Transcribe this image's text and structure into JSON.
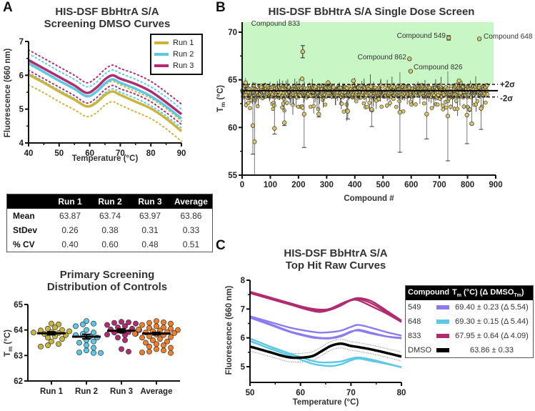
{
  "panel_letters": {
    "a": "A",
    "b": "B",
    "c": "C"
  },
  "chart_data": [
    {
      "id": "A-curves",
      "type": "line",
      "title": "HIS-DSF BbHtrA S/A Screening DMSO Curves",
      "title_lines": [
        "HIS-DSF BbHtrA S/A",
        "Screening DMSO Curves"
      ],
      "xlabel": "Temperature (°C)",
      "ylabel": "Fluorescence (660 nm)",
      "xlim": [
        40,
        90
      ],
      "ylim": [
        4,
        7
      ],
      "xticks": [
        40,
        50,
        60,
        70,
        80,
        90
      ],
      "yticks": [
        4,
        5,
        6,
        7
      ],
      "legend": "top-right",
      "x": [
        40,
        45,
        50,
        55,
        59,
        62,
        65,
        67.5,
        70,
        75,
        80,
        85,
        90
      ],
      "series": [
        {
          "name": "Run 1",
          "color": "#c9b53a",
          "values": [
            6.02,
            5.78,
            5.52,
            5.28,
            5.08,
            5.18,
            5.42,
            5.52,
            5.42,
            5.22,
            5.02,
            4.72,
            4.35
          ],
          "band": 0.3
        },
        {
          "name": "Run 2",
          "color": "#5bc8e6",
          "values": [
            6.36,
            6.1,
            5.84,
            5.6,
            5.38,
            5.5,
            5.76,
            5.88,
            5.78,
            5.6,
            5.38,
            5.08,
            4.72
          ],
          "band": 0.28
        },
        {
          "name": "Run 3",
          "color": "#b02c6e",
          "values": [
            6.45,
            6.2,
            5.95,
            5.7,
            5.48,
            5.62,
            5.88,
            6.0,
            5.9,
            5.74,
            5.52,
            5.2,
            4.85
          ],
          "band": 0.3
        }
      ]
    },
    {
      "id": "A-controls",
      "type": "scatter",
      "title": "Primary Screening Distribution of Controls",
      "title_lines": [
        "Primary Screening",
        "Distribution of Controls"
      ],
      "xlabel": "",
      "ylabel": "Tm (°C)",
      "ylim": [
        62,
        65
      ],
      "yticks": [
        62,
        63,
        64,
        65
      ],
      "categories": [
        "Run 1",
        "Run 2",
        "Run 3",
        "Average"
      ],
      "series": [
        {
          "name": "Run 1",
          "color": "#c9b53a",
          "mean": 63.87,
          "sem": 0.06,
          "values": [
            64.25,
            64.22,
            64.1,
            64.05,
            64.0,
            63.98,
            63.95,
            63.92,
            63.9,
            63.88,
            63.85,
            63.8,
            63.75,
            63.7,
            63.65,
            63.55,
            63.45,
            63.4,
            63.35
          ]
        },
        {
          "name": "Run 2",
          "color": "#5bc8e6",
          "mean": 63.74,
          "sem": 0.09,
          "values": [
            64.35,
            64.25,
            64.22,
            64.15,
            64.0,
            63.9,
            63.85,
            63.8,
            63.75,
            63.7,
            63.6,
            63.55,
            63.5,
            63.4,
            63.3,
            63.2,
            63.12,
            63.1,
            63.1
          ]
        },
        {
          "name": "Run 3",
          "color": "#b02c6e",
          "mean": 63.97,
          "sem": 0.07,
          "values": [
            64.32,
            64.3,
            64.28,
            64.25,
            64.2,
            64.15,
            64.1,
            64.05,
            64.02,
            64.0,
            63.95,
            63.92,
            63.9,
            63.85,
            63.82,
            63.8,
            63.7,
            63.6,
            63.25,
            63.15
          ]
        },
        {
          "name": "Average",
          "color": "#f07f2a",
          "mean": 63.86,
          "sem": 0.05,
          "values": [
            64.35,
            64.3,
            64.28,
            64.25,
            64.2,
            64.15,
            64.1,
            64.08,
            64.05,
            64.02,
            64.0,
            63.98,
            63.95,
            63.92,
            63.9,
            63.88,
            63.85,
            63.82,
            63.8,
            63.75,
            63.72,
            63.7,
            63.65,
            63.6,
            63.55,
            63.5,
            63.45,
            63.4,
            63.35,
            63.3,
            63.25,
            63.2,
            63.15,
            63.12,
            63.1
          ]
        }
      ]
    },
    {
      "id": "B-screen",
      "type": "scatter",
      "title": "HIS-DSF BbHtrA S/A Single Dose Screen",
      "xlabel": "Compound #",
      "ylabel": "Tm (°C)",
      "xlim": [
        0,
        900
      ],
      "ylim": [
        55,
        70
      ],
      "xticks": [
        0,
        100,
        200,
        300,
        400,
        500,
        600,
        700,
        800,
        900
      ],
      "yticks": [
        55,
        60,
        65,
        70
      ],
      "hit_region": {
        "from": 64.52,
        "to": 71,
        "color": "#c8f7c5"
      },
      "mean_line": 63.86,
      "plus_2sigma": 64.52,
      "minus_2sigma": 63.2,
      "plus_2sigma_label": "+2σ",
      "minus_2sigma_label": "-2σ",
      "n_compounds": 872,
      "point_color": "#d8c76a",
      "annotations": [
        {
          "label": "Compound 833",
          "x": 215,
          "y": 67.95,
          "err": 0.64
        },
        {
          "label": "Compound 549",
          "x": 733,
          "y": 69.4,
          "err": 0.23
        },
        {
          "label": "Compound 648",
          "x": 842,
          "y": 69.3,
          "err": 0.15
        },
        {
          "label": "Compound 862",
          "x": 594,
          "y": 67.2,
          "err": 0.1
        },
        {
          "label": "Compound 826",
          "x": 598,
          "y": 65.9,
          "err": 0.2
        }
      ],
      "notable_points": [
        {
          "x": 12,
          "y": 64.7,
          "err": 0.5
        },
        {
          "x": 213,
          "y": 65.1,
          "err": 0.1
        },
        {
          "x": 305,
          "y": 64.7,
          "err": 0.3
        },
        {
          "x": 395,
          "y": 64.9,
          "err": 0.1
        },
        {
          "x": 770,
          "y": 64.9,
          "err": 0.1
        },
        {
          "x": 44,
          "y": 58.5,
          "err": 3.5
        },
        {
          "x": 38,
          "y": 60.2,
          "err": 3.0
        },
        {
          "x": 115,
          "y": 59.9,
          "err": 0.6
        },
        {
          "x": 150,
          "y": 60.5,
          "err": 0.3
        },
        {
          "x": 220,
          "y": 61.4,
          "err": 3.5
        },
        {
          "x": 272,
          "y": 61.4,
          "err": 0.3
        },
        {
          "x": 375,
          "y": 61.7,
          "err": 0.8
        },
        {
          "x": 460,
          "y": 61.9,
          "err": 1.8
        },
        {
          "x": 560,
          "y": 61.6,
          "err": 4.2
        },
        {
          "x": 655,
          "y": 61.4,
          "err": 2.6
        },
        {
          "x": 730,
          "y": 61.2,
          "err": 4.7
        },
        {
          "x": 798,
          "y": 61.3,
          "err": 3.0
        },
        {
          "x": 815,
          "y": 60.4,
          "err": 0.1
        },
        {
          "x": 848,
          "y": 62.0,
          "err": 2.2
        }
      ]
    },
    {
      "id": "C-curves",
      "type": "line",
      "title": "HIS-DSF BbHtrA S/A Top Hit Raw Curves",
      "title_lines": [
        "HIS-DSF BbHtrA S/A",
        "Top Hit Raw Curves"
      ],
      "xlabel": "Temperature (°C)",
      "ylabel": "Fluorescence (660 nm)",
      "xlim": [
        50,
        80
      ],
      "ylim": [
        4.5,
        8
      ],
      "xticks": [
        50,
        60,
        70,
        80
      ],
      "yticks": [
        5,
        6,
        7,
        8
      ],
      "x": [
        50,
        54,
        58,
        62,
        64,
        66,
        68,
        70,
        71.5,
        74,
        77,
        80
      ],
      "series": [
        {
          "name": "549",
          "color": "#8a7cf0",
          "replicates": [
            [
              6.75,
              6.55,
              6.35,
              6.22,
              6.18,
              6.2,
              6.25,
              6.38,
              6.45,
              6.35,
              6.2,
              6.08
            ],
            [
              6.7,
              6.45,
              6.2,
              6.02,
              5.98,
              5.98,
              6.05,
              6.2,
              6.28,
              6.18,
              6.05,
              5.98
            ],
            [
              6.72,
              6.48,
              6.22,
              6.05,
              6.0,
              6.0,
              6.08,
              6.22,
              6.25,
              6.15,
              6.05,
              6.0
            ]
          ]
        },
        {
          "name": "648",
          "color": "#5bc8e6",
          "replicates": [
            [
              5.98,
              5.7,
              5.45,
              5.22,
              5.15,
              5.15,
              5.18,
              5.28,
              5.32,
              5.25,
              5.12,
              4.98
            ],
            [
              5.9,
              5.62,
              5.38,
              5.12,
              5.05,
              5.02,
              5.08,
              5.22,
              5.28,
              5.2,
              5.1,
              4.98
            ]
          ]
        },
        {
          "name": "833",
          "color": "#b02c6e",
          "replicates": [
            [
              7.58,
              7.38,
              7.18,
              7.02,
              6.98,
              7.0,
              7.15,
              7.3,
              7.35,
              7.2,
              6.9,
              6.55
            ],
            [
              7.55,
              7.35,
              7.15,
              6.95,
              6.9,
              6.98,
              7.12,
              7.3,
              7.3,
              7.1,
              6.85,
              6.55
            ],
            [
              7.6,
              7.4,
              7.2,
              7.0,
              6.95,
              7.02,
              7.18,
              7.32,
              7.38,
              7.28,
              6.95,
              6.6
            ]
          ]
        },
        {
          "name": "DMSO",
          "color": "#000000",
          "values": [
            5.7,
            5.5,
            5.32,
            5.35,
            5.52,
            5.72,
            5.8,
            5.72,
            5.68,
            5.6,
            5.48,
            5.35
          ],
          "band": 0.15
        }
      ],
      "legend": {
        "header": [
          "Compound",
          "Tm (°C) (Δ DMSOTm)"
        ],
        "rows": [
          {
            "compound": "549",
            "color": "#8a7cf0",
            "value": "69.40 ± 0.23 (Δ 5.54)"
          },
          {
            "compound": "648",
            "color": "#5bc8e6",
            "value": "69.30 ± 0.15 (Δ 5.44)"
          },
          {
            "compound": "833",
            "color": "#b02c6e",
            "value": "67.95 ± 0.64 (Δ 4.09)"
          },
          {
            "compound": "DMSO",
            "color": "#000000",
            "value": "63.86 ± 0.33"
          }
        ]
      }
    }
  ],
  "stats_table": {
    "headers": [
      "",
      "Run 1",
      "Run 2",
      "Run 3",
      "Average"
    ],
    "rows": [
      {
        "label": "Mean",
        "values": [
          "63.87",
          "63.74",
          "63.97",
          "63.86"
        ]
      },
      {
        "label": "StDev",
        "values": [
          "0.26",
          "0.38",
          "0.31",
          "0.33"
        ]
      },
      {
        "label": "% CV",
        "values": [
          "0.40",
          "0.60",
          "0.48",
          "0.51"
        ]
      }
    ]
  },
  "legendC_header": {
    "compound": "Compound",
    "tm_prefix": "T",
    "tm_sub": "m",
    "tm_mid": " (°C) (Δ DMSO",
    "tm_sub2": "Tm",
    "tm_end": ")"
  }
}
